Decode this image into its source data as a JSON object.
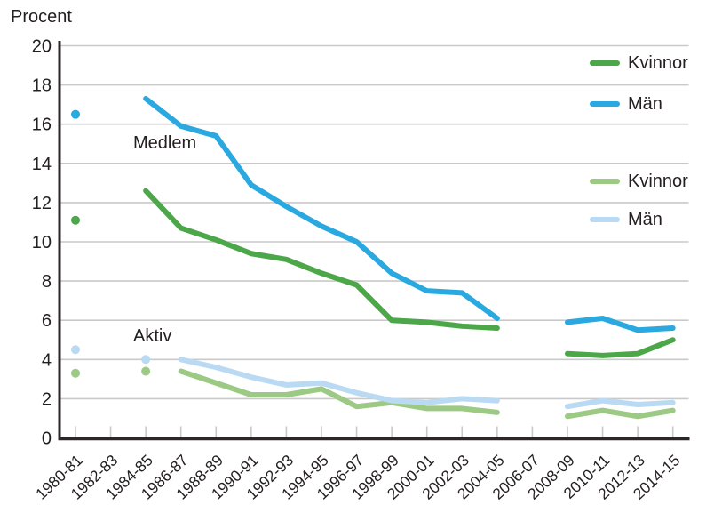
{
  "title": "Procent",
  "annotations": [
    {
      "id": "medlem",
      "text": "Medlem"
    },
    {
      "id": "aktiv",
      "text": "Aktiv"
    }
  ],
  "legend": [
    {
      "label": "Kvinnor",
      "group": "Medlem",
      "color": "#4BA747"
    },
    {
      "label": "Män",
      "group": "Medlem",
      "color": "#2AA8E0"
    },
    {
      "label": "Kvinnor",
      "group": "Aktiv",
      "color": "#9CC983"
    },
    {
      "label": "Män",
      "group": "Aktiv",
      "color": "#B9DAF2"
    }
  ],
  "chart_data": {
    "type": "line",
    "title": "Procent",
    "ylabel": "Procent",
    "xlabel": "",
    "ylim": [
      0,
      20
    ],
    "ytick_step": 2,
    "grid": true,
    "legend_position": "top-right",
    "colors": {
      "grid": "#C9C9C9",
      "axis": "#2B2627",
      "text": "#242021"
    },
    "categories": [
      "1980-81",
      "1982-83",
      "1984-85",
      "1986-87",
      "1988-89",
      "1990-91",
      "1992-93",
      "1994-95",
      "1996-97",
      "1998-99",
      "2000-01",
      "2002-03",
      "2004-05",
      "2006-07",
      "2008-09",
      "2010-11",
      "2012-13",
      "2014-15"
    ],
    "series": [
      {
        "id": "medlem-kvinnor",
        "name": "Kvinnor",
        "group": "Medlem",
        "color": "#4BA747",
        "dots": [
          0
        ],
        "values": [
          11.1,
          null,
          12.6,
          10.7,
          10.1,
          9.4,
          9.1,
          8.4,
          7.8,
          6.0,
          5.9,
          5.7,
          5.6,
          null,
          4.3,
          4.2,
          4.3,
          5.0
        ]
      },
      {
        "id": "medlem-man",
        "name": "Män",
        "group": "Medlem",
        "color": "#2AA8E0",
        "dots": [
          0
        ],
        "values": [
          16.5,
          null,
          17.3,
          15.9,
          15.4,
          12.9,
          11.8,
          10.8,
          10.0,
          8.4,
          7.5,
          7.4,
          6.1,
          null,
          5.9,
          6.1,
          5.5,
          5.6
        ]
      },
      {
        "id": "aktiv-kvinnor",
        "name": "Kvinnor",
        "group": "Aktiv",
        "color": "#9CC983",
        "dots": [
          0,
          2
        ],
        "values": [
          3.3,
          null,
          3.4,
          3.4,
          2.8,
          2.2,
          2.2,
          2.5,
          1.6,
          1.8,
          1.5,
          1.5,
          1.3,
          null,
          1.1,
          1.4,
          1.1,
          1.4
        ]
      },
      {
        "id": "aktiv-man",
        "name": "Män",
        "group": "Aktiv",
        "color": "#B9DAF2",
        "dots": [
          0,
          2
        ],
        "values": [
          4.5,
          null,
          4.0,
          4.0,
          3.6,
          3.1,
          2.7,
          2.8,
          2.3,
          1.9,
          1.8,
          2.0,
          1.9,
          null,
          1.6,
          1.9,
          1.7,
          1.8
        ]
      }
    ]
  }
}
